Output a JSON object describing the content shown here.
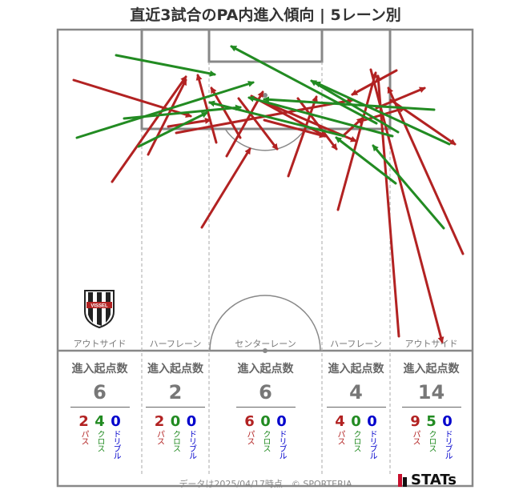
{
  "title": "直近3試合のPA内進入傾向 | 5レーン別",
  "lanes": [
    {
      "label": "アウトサイド",
      "stats_title": "進入起点数",
      "total": "6",
      "pass": "2",
      "cross": "4",
      "dribble": "0"
    },
    {
      "label": "ハーフレーン",
      "stats_title": "進入起点数",
      "total": "2",
      "pass": "2",
      "cross": "0",
      "dribble": "0"
    },
    {
      "label": "センターレーン",
      "stats_title": "進入起点数",
      "total": "6",
      "pass": "6",
      "cross": "0",
      "dribble": "0"
    },
    {
      "label": "ハーフレーン",
      "stats_title": "進入起点数",
      "total": "4",
      "pass": "4",
      "cross": "0",
      "dribble": "0"
    },
    {
      "label": "アウトサイド",
      "stats_title": "進入起点数",
      "total": "14",
      "pass": "9",
      "cross": "5",
      "dribble": "0"
    }
  ],
  "legend": {
    "pass": "パス",
    "cross": "クロス",
    "dribble": "ドリブル"
  },
  "colors": {
    "pass": "#b22222",
    "cross": "#228b22",
    "dribble": "#0000cc",
    "pitch_line": "#888888"
  },
  "footer": "データは2025/04/17時点　© SPORTERIA",
  "brand": "STATs",
  "logo_text": "VISSEL",
  "arrows": {
    "pass": [
      [
        [
          92,
          100
        ],
        [
          238,
          145
        ]
      ],
      [
        [
          140,
          227
        ],
        [
          232,
          96
        ]
      ],
      [
        [
          185,
          193
        ],
        [
          232,
          100
        ]
      ],
      [
        [
          252,
          284
        ],
        [
          312,
          186
        ]
      ],
      [
        [
          270,
          178
        ],
        [
          247,
          94
        ]
      ],
      [
        [
          300,
          172
        ],
        [
          264,
          110
        ]
      ],
      [
        [
          283,
          195
        ],
        [
          328,
          115
        ]
      ],
      [
        [
          314,
          120
        ],
        [
          406,
          170
        ]
      ],
      [
        [
          298,
          123
        ],
        [
          346,
          186
        ]
      ],
      [
        [
          360,
          220
        ],
        [
          395,
          121
        ]
      ],
      [
        [
          372,
          123
        ],
        [
          420,
          186
        ]
      ],
      [
        [
          331,
          128
        ],
        [
          444,
          176
        ]
      ],
      [
        [
          428,
          170
        ],
        [
          452,
          148
        ]
      ],
      [
        [
          422,
          262
        ],
        [
          469,
          91
        ]
      ],
      [
        [
          463,
          87
        ],
        [
          552,
          427
        ]
      ],
      [
        [
          498,
          420
        ],
        [
          472,
          95
        ]
      ],
      [
        [
          488,
          125
        ],
        [
          568,
          180
        ]
      ],
      [
        [
          578,
          317
        ],
        [
          485,
          110
        ]
      ],
      [
        [
          470,
          135
        ],
        [
          530,
          110
        ]
      ],
      [
        [
          495,
          88
        ],
        [
          440,
          118
        ]
      ],
      [
        [
          220,
          166
        ],
        [
          440,
          125
        ]
      ],
      [
        [
          455,
          150
        ],
        [
          505,
          135
        ]
      ],
      [
        [
          330,
          150
        ],
        [
          405,
          170
        ]
      ],
      [
        [
          210,
          158
        ],
        [
          262,
          150
        ]
      ]
    ],
    "cross": [
      [
        [
          145,
          69
        ],
        [
          268,
          93
        ]
      ],
      [
        [
          155,
          148
        ],
        [
          300,
          134
        ]
      ],
      [
        [
          173,
          183
        ],
        [
          258,
          141
        ]
      ],
      [
        [
          96,
          172
        ],
        [
          316,
          103
        ]
      ],
      [
        [
          470,
          154
        ],
        [
          289,
          58
        ]
      ],
      [
        [
          497,
          165
        ],
        [
          389,
          101
        ]
      ],
      [
        [
          490,
          170
        ],
        [
          311,
          122
        ]
      ],
      [
        [
          542,
          137
        ],
        [
          330,
          124
        ]
      ],
      [
        [
          561,
          180
        ],
        [
          394,
          103
        ]
      ],
      [
        [
          554,
          285
        ],
        [
          466,
          182
        ]
      ],
      [
        [
          494,
          229
        ],
        [
          420,
          172
        ]
      ],
      [
        [
          430,
          170
        ],
        [
          262,
          128
        ]
      ]
    ],
    "dribble": []
  }
}
